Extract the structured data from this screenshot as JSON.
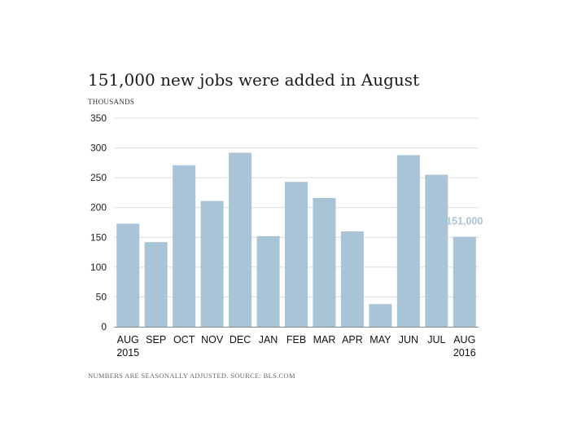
{
  "title": "151,000 new jobs were added in August",
  "unit_label": "THOUSANDS",
  "footnote": "NUMBERS ARE SEASONALLY ADJUSTED. SOURCE: BLS.COM",
  "colors": {
    "bar": "#a9c3d7",
    "grid": "#dcdcdc",
    "axis": "#888888",
    "annotation": "#a9c3d7"
  },
  "chart_data": {
    "type": "bar",
    "categories": [
      "AUG",
      "SEP",
      "OCT",
      "NOV",
      "DEC",
      "JAN",
      "FEB",
      "MAR",
      "APR",
      "MAY",
      "JUN",
      "JUL",
      "AUG"
    ],
    "category_sublabels": [
      "2015",
      "",
      "",
      "",
      "",
      "",
      "",
      "",
      "",
      "",
      "",
      "",
      "2016"
    ],
    "values": [
      173,
      142,
      271,
      211,
      292,
      152,
      243,
      216,
      160,
      38,
      288,
      255,
      151
    ],
    "ylim": [
      0,
      350
    ],
    "yticks": [
      0,
      50,
      100,
      150,
      200,
      250,
      300,
      350
    ],
    "grid": true,
    "annotation": {
      "category_index": 12,
      "text": "151,000"
    }
  }
}
